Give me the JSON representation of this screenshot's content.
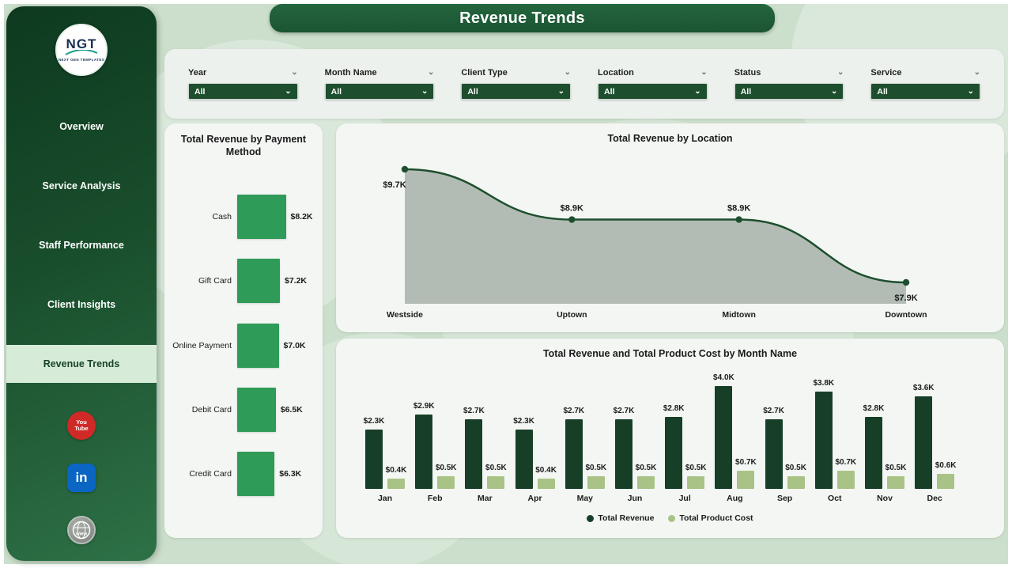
{
  "header": {
    "title": "Revenue Trends"
  },
  "sidebar": {
    "logo": {
      "text": "NGT",
      "subtext": "NEXT GEN TEMPLATES"
    },
    "items": [
      {
        "label": "Overview",
        "active": false
      },
      {
        "label": "Service Analysis",
        "active": false
      },
      {
        "label": "Staff Performance",
        "active": false
      },
      {
        "label": "Client Insights",
        "active": false
      },
      {
        "label": "Revenue Trends",
        "active": true
      }
    ],
    "social": {
      "youtube_lines": [
        "You",
        "Tube"
      ],
      "linkedin_text": "in",
      "globe_text": "www"
    }
  },
  "filters": [
    {
      "label": "Year",
      "value": "All"
    },
    {
      "label": "Month Name",
      "value": "All"
    },
    {
      "label": "Client Type",
      "value": "All"
    },
    {
      "label": "Location",
      "value": "All"
    },
    {
      "label": "Status",
      "value": "All"
    },
    {
      "label": "Service",
      "value": "All"
    }
  ],
  "colors": {
    "accent_dark": "#1d4f2e",
    "payment_bar": "#2f9b58",
    "area_line": "#1d4f2e",
    "area_fill": "#a7b2a8",
    "revenue_bar": "#173f27",
    "cost_bar": "#a9c386",
    "youtube_red": "#cf2a27",
    "linkedin_blue": "#0a66c2"
  },
  "chart_data": [
    {
      "type": "bar",
      "orientation": "horizontal",
      "title": "Total Revenue by Payment Method",
      "categories": [
        "Cash",
        "Gift Card",
        "Online Payment",
        "Debit Card",
        "Credit Card"
      ],
      "values": [
        8.2,
        7.2,
        7.0,
        6.5,
        6.3
      ],
      "labels": [
        "$8.2K",
        "$7.2K",
        "$7.0K",
        "$6.5K",
        "$6.3K"
      ],
      "value_unit": "K USD",
      "legend": "none",
      "grid": false
    },
    {
      "type": "area",
      "title": "Total Revenue by Location",
      "categories": [
        "Westside",
        "Uptown",
        "Midtown",
        "Downtown"
      ],
      "values": [
        9.7,
        8.9,
        8.9,
        7.9
      ],
      "labels": [
        "$9.7K",
        "$8.9K",
        "$8.9K",
        "$7.9K"
      ],
      "label_positions": [
        "below",
        "above",
        "above",
        "below"
      ],
      "value_unit": "K USD",
      "legend": "none",
      "grid": false
    },
    {
      "type": "bar",
      "title": "Total Revenue and Total Product Cost by Month Name",
      "categories": [
        "Jan",
        "Feb",
        "Mar",
        "Apr",
        "May",
        "Jun",
        "Jul",
        "Aug",
        "Sep",
        "Oct",
        "Nov",
        "Dec"
      ],
      "series": [
        {
          "name": "Total Revenue",
          "color": "#173f27",
          "values": [
            2.3,
            2.9,
            2.7,
            2.3,
            2.7,
            2.7,
            2.8,
            4.0,
            2.7,
            3.8,
            2.8,
            3.6
          ],
          "labels": [
            "$2.3K",
            "$2.9K",
            "$2.7K",
            "$2.3K",
            "$2.7K",
            "$2.7K",
            "$2.8K",
            "$4.0K",
            "$2.7K",
            "$3.8K",
            "$2.8K",
            "$3.6K"
          ]
        },
        {
          "name": "Total Product Cost",
          "color": "#a9c386",
          "values": [
            0.4,
            0.5,
            0.5,
            0.4,
            0.5,
            0.5,
            0.5,
            0.7,
            0.5,
            0.7,
            0.5,
            0.6
          ],
          "labels": [
            "$0.4K",
            "$0.5K",
            "$0.5K",
            "$0.4K",
            "$0.5K",
            "$0.5K",
            "$0.5K",
            "$0.7K",
            "$0.5K",
            "$0.7K",
            "$0.5K",
            "$0.6K"
          ]
        }
      ],
      "value_unit": "K USD",
      "legend": "bottom",
      "grid": false
    }
  ]
}
